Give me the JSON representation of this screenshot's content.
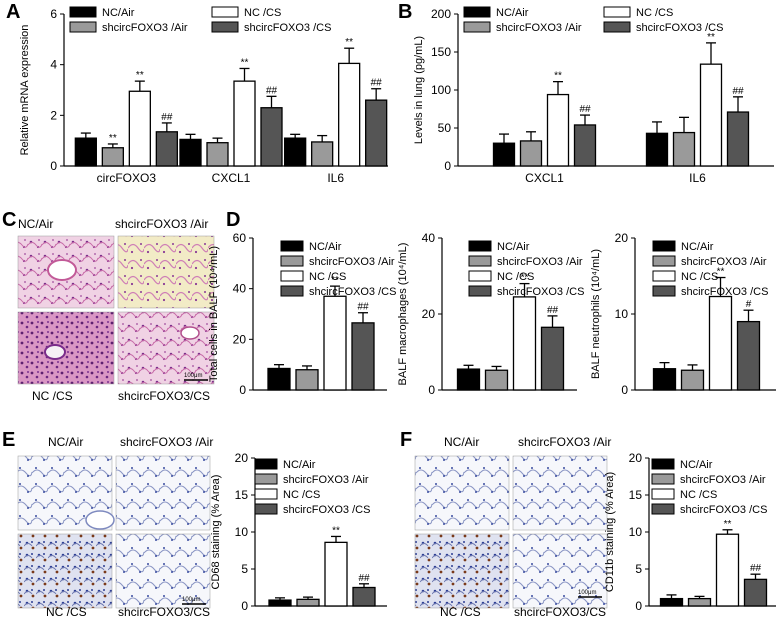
{
  "colors": {
    "black": "#000000",
    "light_gray": "#9a9a9a",
    "white": "#ffffff",
    "dark_gray": "#555555"
  },
  "group_colors": [
    "#000000",
    "#9a9a9a",
    "#ffffff",
    "#555555"
  ],
  "legend_labels": [
    "NC/Air",
    "shcircFOXO3 /Air",
    "NC /CS",
    "shcircFOXO3 /CS"
  ],
  "panel_letters": {
    "a": "A",
    "b": "B",
    "c": "C",
    "d": "D",
    "e": "E",
    "f": "F"
  },
  "micro": {
    "c": {
      "tl": "NC/Air",
      "tr": "shcircFOXO3 /Air",
      "bl": "NC /CS",
      "br": "shcircFOXO3/CS",
      "scale": "100μm"
    },
    "e": {
      "tl": "NC/Air",
      "tr": "shcircFOXO3 /Air",
      "bl": "NC /CS",
      "br": "shcircFOXO3/CS",
      "scale": "100μm"
    },
    "f": {
      "tl": "NC/Air",
      "tr": "shcircFOXO3 /Air",
      "bl": "NC /CS",
      "br": "shcircFOXO3/CS",
      "scale": "100μm"
    }
  },
  "chart_data": [
    {
      "id": "A",
      "type": "bar",
      "ylabel": "Relative mRNA expression",
      "ylim": [
        0,
        6
      ],
      "yticks": [
        "0",
        "2",
        "4",
        "6"
      ],
      "categories": [
        "circFOXO3",
        "CXCL1",
        "IL6"
      ],
      "series": [
        {
          "name": "NC/Air",
          "values": [
            1.1,
            1.05,
            1.1
          ],
          "err": [
            0.2,
            0.2,
            0.15
          ]
        },
        {
          "name": "shcircFOXO3 /Air",
          "values": [
            0.72,
            0.92,
            0.95
          ],
          "err": [
            0.15,
            0.18,
            0.25
          ]
        },
        {
          "name": "NC /CS",
          "values": [
            2.95,
            3.35,
            4.05
          ],
          "err": [
            0.4,
            0.5,
            0.6
          ]
        },
        {
          "name": "shcircFOXO3 /CS",
          "values": [
            1.35,
            2.3,
            2.6
          ],
          "err": [
            0.35,
            0.45,
            0.45
          ]
        }
      ],
      "annotations": [
        {
          "cat": 0,
          "series": 1,
          "text": "**"
        },
        {
          "cat": 0,
          "series": 2,
          "text": "**"
        },
        {
          "cat": 0,
          "series": 3,
          "text": "##"
        },
        {
          "cat": 1,
          "series": 2,
          "text": "**"
        },
        {
          "cat": 1,
          "series": 3,
          "text": "##"
        },
        {
          "cat": 2,
          "series": 2,
          "text": "**"
        },
        {
          "cat": 2,
          "series": 3,
          "text": "##"
        }
      ]
    },
    {
      "id": "B",
      "type": "bar",
      "ylabel": "Levels in lung (pg/mL)",
      "ylim": [
        0,
        200
      ],
      "yticks": [
        "0",
        "50",
        "100",
        "150",
        "200"
      ],
      "categories": [
        "CXCL1",
        "IL6"
      ],
      "series": [
        {
          "name": "NC/Air",
          "values": [
            30,
            43
          ],
          "err": [
            12,
            15
          ]
        },
        {
          "name": "shcircFOXO3 /Air",
          "values": [
            33,
            44
          ],
          "err": [
            12,
            20
          ]
        },
        {
          "name": "NC /CS",
          "values": [
            94,
            134
          ],
          "err": [
            17,
            28
          ]
        },
        {
          "name": "shcircFOXO3 /CS",
          "values": [
            54,
            71
          ],
          "err": [
            13,
            20
          ]
        }
      ],
      "annotations": [
        {
          "cat": 0,
          "series": 2,
          "text": "**"
        },
        {
          "cat": 0,
          "series": 3,
          "text": "##"
        },
        {
          "cat": 1,
          "series": 2,
          "text": "**"
        },
        {
          "cat": 1,
          "series": 3,
          "text": "##"
        }
      ]
    },
    {
      "id": "D1",
      "type": "bar",
      "ylabel": "Total cells in BALF (10⁴/mL)",
      "ylim": [
        0,
        60
      ],
      "yticks": [
        "0",
        "20",
        "40",
        "60"
      ],
      "categories": [
        ""
      ],
      "series": [
        {
          "name": "NC/Air",
          "values": [
            8.5
          ],
          "err": [
            1.5
          ]
        },
        {
          "name": "shcircFOXO3 /Air",
          "values": [
            8
          ],
          "err": [
            1.5
          ]
        },
        {
          "name": "NC /CS",
          "values": [
            37
          ],
          "err": [
            4
          ]
        },
        {
          "name": "shcircFOXO3 /CS",
          "values": [
            26.5
          ],
          "err": [
            4
          ]
        }
      ],
      "annotations": [
        {
          "cat": 0,
          "series": 2,
          "text": "**"
        },
        {
          "cat": 0,
          "series": 3,
          "text": "##"
        }
      ]
    },
    {
      "id": "D2",
      "type": "bar",
      "ylabel": "BALF macrophages (10⁴/mL)",
      "ylim": [
        0,
        40
      ],
      "yticks": [
        "0",
        "20",
        "40"
      ],
      "categories": [
        ""
      ],
      "series": [
        {
          "name": "NC/Air",
          "values": [
            5.5
          ],
          "err": [
            1
          ]
        },
        {
          "name": "shcircFOXO3 /Air",
          "values": [
            5.2
          ],
          "err": [
            1
          ]
        },
        {
          "name": "NC /CS",
          "values": [
            24.5
          ],
          "err": [
            3.5
          ]
        },
        {
          "name": "shcircFOXO3 /CS",
          "values": [
            16.5
          ],
          "err": [
            3
          ]
        }
      ],
      "annotations": [
        {
          "cat": 0,
          "series": 2,
          "text": "**"
        },
        {
          "cat": 0,
          "series": 3,
          "text": "##"
        }
      ]
    },
    {
      "id": "D3",
      "type": "bar",
      "ylabel": "BALF neutrophils (10⁴/mL)",
      "ylim": [
        0,
        20
      ],
      "yticks": [
        "0",
        "10",
        "20"
      ],
      "categories": [
        ""
      ],
      "series": [
        {
          "name": "NC/Air",
          "values": [
            2.8
          ],
          "err": [
            0.8
          ]
        },
        {
          "name": "shcircFOXO3 /Air",
          "values": [
            2.6
          ],
          "err": [
            0.7
          ]
        },
        {
          "name": "NC /CS",
          "values": [
            12.3
          ],
          "err": [
            2.5
          ]
        },
        {
          "name": "shcircFOXO3 /CS",
          "values": [
            9
          ],
          "err": [
            1.5
          ]
        }
      ],
      "annotations": [
        {
          "cat": 0,
          "series": 2,
          "text": "**"
        },
        {
          "cat": 0,
          "series": 3,
          "text": "#"
        }
      ]
    },
    {
      "id": "E",
      "type": "bar",
      "ylabel": "CD68 staining (% Area)",
      "ylim": [
        0,
        20
      ],
      "yticks": [
        "0",
        "5",
        "10",
        "15",
        "20"
      ],
      "categories": [
        ""
      ],
      "series": [
        {
          "name": "NC/Air",
          "values": [
            0.8
          ],
          "err": [
            0.3
          ]
        },
        {
          "name": "shcircFOXO3 /Air",
          "values": [
            0.9
          ],
          "err": [
            0.3
          ]
        },
        {
          "name": "NC /CS",
          "values": [
            8.6
          ],
          "err": [
            0.8
          ]
        },
        {
          "name": "shcircFOXO3 /CS",
          "values": [
            2.5
          ],
          "err": [
            0.5
          ]
        }
      ],
      "annotations": [
        {
          "cat": 0,
          "series": 2,
          "text": "**"
        },
        {
          "cat": 0,
          "series": 3,
          "text": "##"
        }
      ]
    },
    {
      "id": "F",
      "type": "bar",
      "ylabel": "CD11b staining (% Area)",
      "ylim": [
        0,
        20
      ],
      "yticks": [
        "0",
        "5",
        "10",
        "15",
        "20"
      ],
      "categories": [
        ""
      ],
      "series": [
        {
          "name": "NC/Air",
          "values": [
            1.0
          ],
          "err": [
            0.5
          ]
        },
        {
          "name": "shcircFOXO3 /Air",
          "values": [
            1.0
          ],
          "err": [
            0.3
          ]
        },
        {
          "name": "NC /CS",
          "values": [
            9.7
          ],
          "err": [
            0.6
          ]
        },
        {
          "name": "shcircFOXO3 /CS",
          "values": [
            3.6
          ],
          "err": [
            0.7
          ]
        }
      ],
      "annotations": [
        {
          "cat": 0,
          "series": 2,
          "text": "**"
        },
        {
          "cat": 0,
          "series": 3,
          "text": "##"
        }
      ]
    }
  ]
}
